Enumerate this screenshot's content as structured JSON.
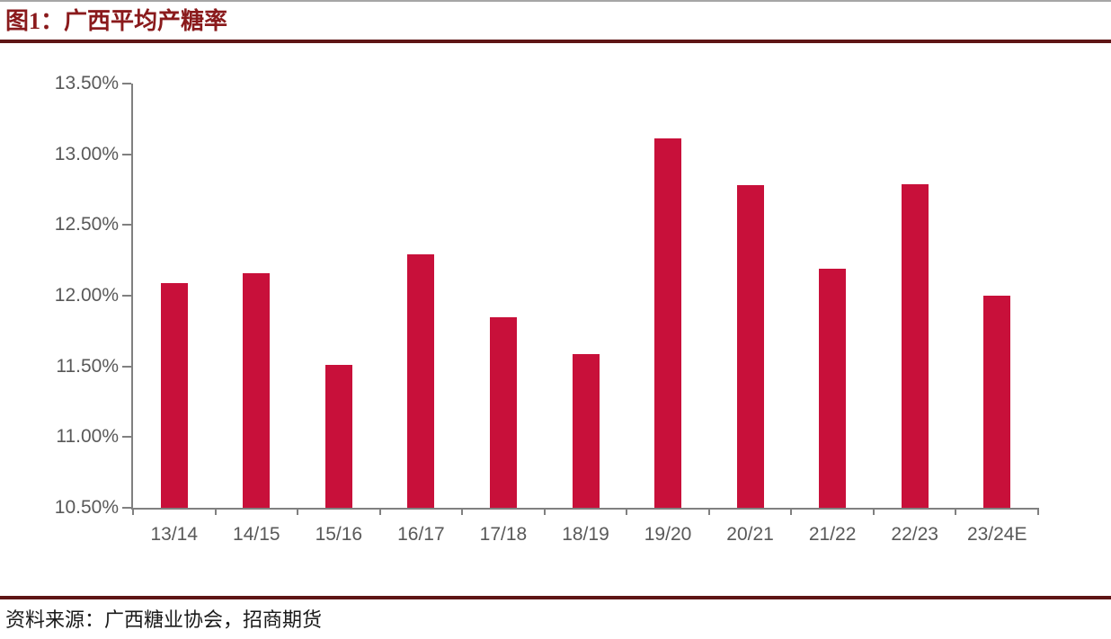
{
  "figure": {
    "title": "图1：广西平均产糖率",
    "source": "资料来源：广西糖业协会，招商期货"
  },
  "colors": {
    "bar": "#c8103a",
    "title_text": "#8a1a1c",
    "rule": "#5e1515",
    "axis_line": "#808080",
    "tick_label": "#595959"
  },
  "chart_data": {
    "type": "bar",
    "title": "广西平均产糖率",
    "categories": [
      "13/14",
      "14/15",
      "15/16",
      "16/17",
      "17/18",
      "18/19",
      "19/20",
      "20/21",
      "21/22",
      "22/23",
      "23/24E"
    ],
    "values": [
      12.09,
      12.16,
      11.51,
      12.29,
      11.85,
      11.59,
      13.11,
      12.78,
      12.19,
      12.79,
      12.0
    ],
    "unit": "%",
    "xlabel": "",
    "ylabel": "",
    "ylim": [
      10.5,
      13.5
    ],
    "y_tick_values": [
      13.5,
      13.0,
      12.5,
      12.0,
      11.5,
      11.0,
      10.5
    ],
    "y_tick_labels": [
      "13.50%",
      "13.00%",
      "12.50%",
      "12.00%",
      "11.50%",
      "11.00%",
      "10.50%"
    ],
    "grid": false,
    "legend_position": "none"
  }
}
